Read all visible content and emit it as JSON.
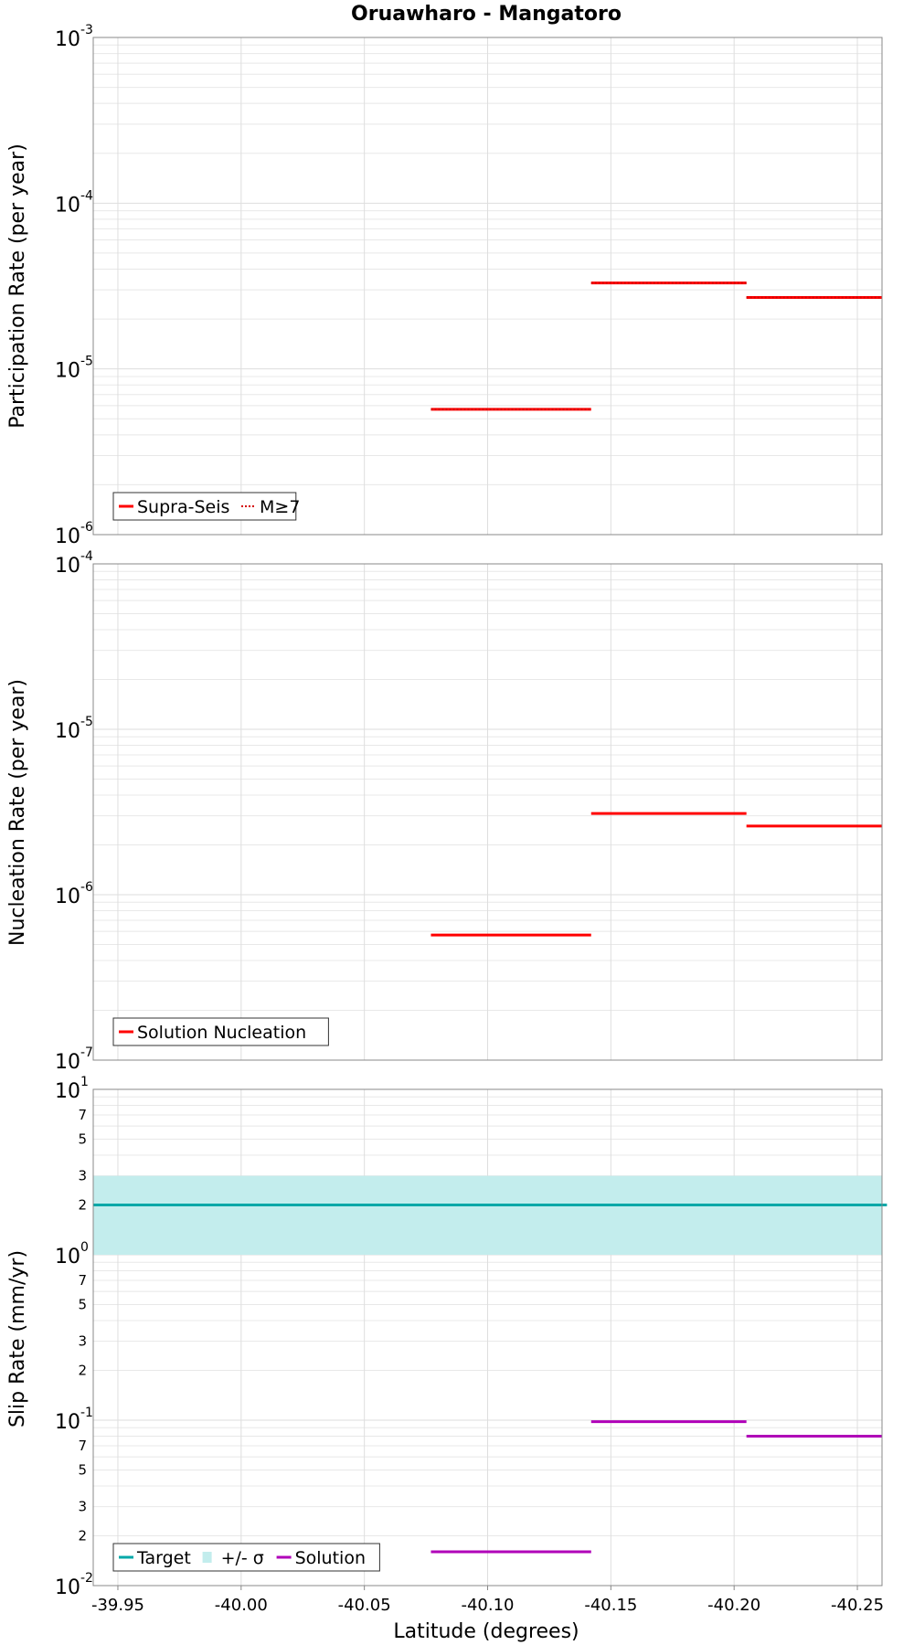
{
  "title": "Oruawharo - Mangatoro",
  "xlabel": "Latitude (degrees)",
  "colors": {
    "supra": "#ff0000",
    "target": "#00a8a8",
    "sigma": "#c3eded",
    "solution": "#b000b8",
    "grid": "#e8e8e8"
  },
  "chart_data": [
    {
      "type": "line",
      "ylabel": "Participation Rate (per year)",
      "yscale": "log",
      "ylim": [
        1e-06,
        0.001
      ],
      "xlim": [
        -39.94,
        -40.26
      ],
      "xticks": [
        "-39.95",
        "-40.00",
        "-40.05",
        "-40.10",
        "-40.15",
        "-40.20",
        "-40.25"
      ],
      "yticks": [
        {
          "base": "10",
          "exp": "-6"
        },
        {
          "base": "10",
          "exp": "-5"
        },
        {
          "base": "10",
          "exp": "-4"
        },
        {
          "base": "10",
          "exp": "-3"
        }
      ],
      "series": [
        {
          "name": "Supra-Seis",
          "style": "solid",
          "segments": [
            [
              -40.077,
              -40.142,
              5.7e-06
            ],
            [
              -40.142,
              -40.205,
              3.3e-05
            ],
            [
              -40.205,
              -40.262,
              2.7e-05
            ]
          ]
        },
        {
          "name": "M≥7",
          "style": "dotted",
          "segments": [
            [
              -40.077,
              -40.142,
              5.7e-06
            ],
            [
              -40.142,
              -40.205,
              3.3e-05
            ],
            [
              -40.205,
              -40.262,
              2.7e-05
            ]
          ]
        }
      ],
      "legend": [
        "Supra-Seis",
        "M≥7"
      ]
    },
    {
      "type": "line",
      "ylabel": "Nucleation Rate (per year)",
      "yscale": "log",
      "ylim": [
        1e-07,
        0.0001
      ],
      "xlim": [
        -39.94,
        -40.26
      ],
      "yticks": [
        {
          "base": "10",
          "exp": "-7"
        },
        {
          "base": "10",
          "exp": "-6"
        },
        {
          "base": "10",
          "exp": "-5"
        },
        {
          "base": "10",
          "exp": "-4"
        }
      ],
      "series": [
        {
          "name": "Solution Nucleation",
          "style": "solid",
          "segments": [
            [
              -40.077,
              -40.142,
              5.7e-07
            ],
            [
              -40.142,
              -40.205,
              3.1e-06
            ],
            [
              -40.205,
              -40.262,
              2.6e-06
            ]
          ]
        }
      ],
      "legend": [
        "Solution Nucleation"
      ]
    },
    {
      "type": "line",
      "ylabel": "Slip Rate (mm/yr)",
      "yscale": "log",
      "ylim": [
        0.01,
        10
      ],
      "xlim": [
        -39.94,
        -40.26
      ],
      "yticks": [
        {
          "base": "10",
          "exp": "-2"
        },
        {
          "base": "10",
          "exp": "-1"
        },
        {
          "base": "10",
          "exp": "0"
        },
        {
          "base": "10",
          "exp": "1"
        }
      ],
      "minor_ticks": [
        "2",
        "3",
        "5",
        "7"
      ],
      "target": {
        "name": "Target",
        "value": 2.0,
        "x_range": [
          -39.94,
          -40.262
        ]
      },
      "sigma": {
        "name": "+/- σ",
        "low": 1.0,
        "high": 3.0
      },
      "series": [
        {
          "name": "Solution",
          "style": "solid",
          "segments": [
            [
              -40.077,
              -40.142,
              0.016
            ],
            [
              -40.142,
              -40.205,
              0.098
            ],
            [
              -40.205,
              -40.262,
              0.08
            ]
          ]
        }
      ],
      "legend": [
        "Target",
        "+/- σ",
        "Solution"
      ]
    }
  ]
}
